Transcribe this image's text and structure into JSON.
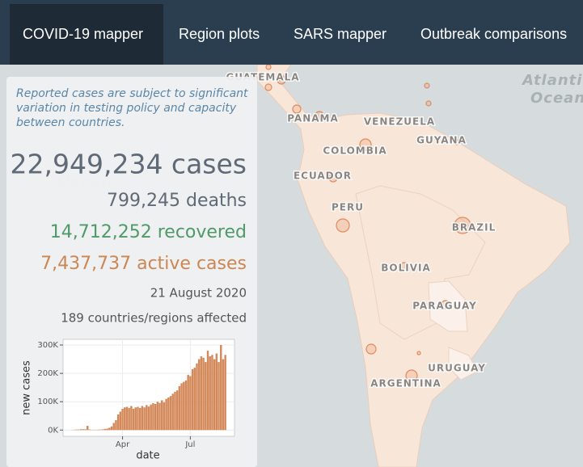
{
  "nav": {
    "tabs": [
      "COVID-19 mapper",
      "Region plots",
      "SARS mapper",
      "Outbreak comparisons"
    ]
  },
  "panel": {
    "note": [
      "Reported cases are subject to significant",
      "variation in testing policy and capacity",
      "between countries."
    ],
    "cases": "22,949,234 cases",
    "deaths": "799,245 deaths",
    "recovered": "14,712,252 recovered",
    "active": "7,437,737 active cases",
    "date": "21 August 2020",
    "affected": "189 countries/regions affected"
  },
  "map": {
    "labels": [
      "GUATEMALA",
      "PANAMA",
      "VENEZUELA",
      "GUYANA",
      "COLOMBIA",
      "ECUADOR",
      "PERU",
      "BRAZIL",
      "BOLIVIA",
      "PARAGUAY",
      "URUGUAY",
      "ARGENTINA",
      "Atlantic",
      "Ocean",
      "Ocean"
    ]
  },
  "chart_data": {
    "type": "bar",
    "xlabel": "date",
    "ylabel": "new cases",
    "color": "#d4895a",
    "grid": true,
    "categories": [
      null,
      null,
      null,
      null,
      null,
      null,
      null,
      null,
      null,
      null,
      null,
      null,
      null,
      null,
      null,
      null,
      null,
      null,
      null,
      null,
      null,
      null,
      null,
      "Apr",
      null,
      null,
      null,
      null,
      null,
      null,
      null,
      null,
      null,
      null,
      null,
      null,
      null,
      null,
      null,
      null,
      null,
      null,
      null,
      null,
      null,
      null,
      null,
      null,
      null,
      null,
      null,
      null,
      null,
      null,
      "Jul",
      null,
      null,
      null,
      null,
      null,
      null,
      null,
      null,
      null,
      null,
      null,
      null,
      null,
      null,
      null,
      null
    ],
    "values": [
      0.5,
      1,
      2,
      2,
      3,
      3,
      3,
      15,
      2,
      1,
      1,
      1,
      1.5,
      2,
      2.5,
      4,
      5,
      8,
      13,
      25,
      35,
      55,
      65,
      75,
      80,
      82,
      78,
      85,
      75,
      80,
      82,
      78,
      85,
      80,
      88,
      83,
      90,
      95,
      92,
      100,
      96,
      105,
      98,
      110,
      115,
      120,
      128,
      135,
      140,
      155,
      165,
      170,
      175,
      195,
      190,
      215,
      220,
      235,
      250,
      260,
      255,
      240,
      280,
      260,
      265,
      250,
      270,
      240,
      300,
      250,
      265
    ],
    "ylim": [
      -22,
      320
    ],
    "yticks": [
      {
        "value": 0,
        "label": "0K"
      },
      {
        "value": 100,
        "label": "100K"
      },
      {
        "value": 200,
        "label": "200K"
      },
      {
        "value": 300,
        "label": "300K"
      }
    ]
  }
}
